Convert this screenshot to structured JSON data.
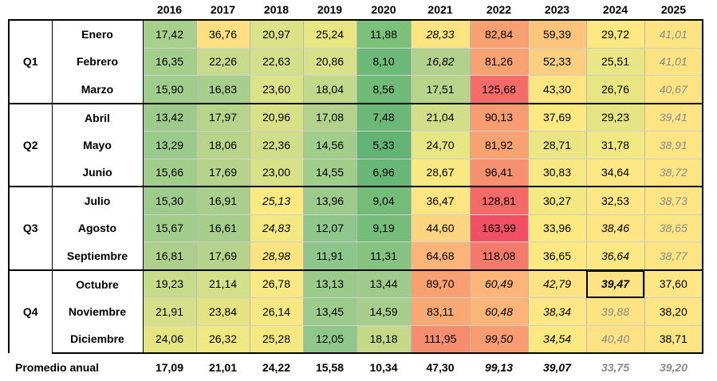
{
  "years": [
    "2016",
    "2017",
    "2018",
    "2019",
    "2020",
    "2021",
    "2022",
    "2023",
    "2024",
    "2025"
  ],
  "quarters": [
    {
      "label": "Q1",
      "months": [
        {
          "name": "Enero",
          "values": [
            "17,42",
            "36,76",
            "20,97",
            "25,24",
            "11,88",
            "28,33",
            "82,84",
            "59,39",
            "29,72",
            "41,01"
          ]
        },
        {
          "name": "Febrero",
          "values": [
            "16,35",
            "22,26",
            "22,63",
            "20,86",
            "8,10",
            "16,82",
            "81,26",
            "52,33",
            "25,51",
            "41,01"
          ]
        },
        {
          "name": "Marzo",
          "values": [
            "15,90",
            "16,83",
            "23,60",
            "18,04",
            "8,56",
            "17,51",
            "125,68",
            "43,30",
            "26,76",
            "40,67"
          ]
        }
      ]
    },
    {
      "label": "Q2",
      "months": [
        {
          "name": "Abril",
          "values": [
            "13,42",
            "17,97",
            "20,96",
            "17,08",
            "7,48",
            "21,04",
            "90,13",
            "37,69",
            "29,23",
            "39,41"
          ]
        },
        {
          "name": "Mayo",
          "values": [
            "13,29",
            "18,06",
            "22,36",
            "14,56",
            "5,33",
            "24,70",
            "81,92",
            "28,71",
            "31,78",
            "38,91"
          ]
        },
        {
          "name": "Junio",
          "values": [
            "15,66",
            "17,69",
            "23,00",
            "14,55",
            "6,96",
            "28,67",
            "96,41",
            "30,83",
            "34,64",
            "38,72"
          ]
        }
      ]
    },
    {
      "label": "Q3",
      "months": [
        {
          "name": "Julio",
          "values": [
            "15,30",
            "16,91",
            "25,13",
            "13,96",
            "9,04",
            "36,47",
            "128,81",
            "30,27",
            "32,53",
            "38,73"
          ]
        },
        {
          "name": "Agosto",
          "values": [
            "15,67",
            "16,61",
            "24,83",
            "12,07",
            "9,19",
            "44,60",
            "163,99",
            "33,96",
            "38,46",
            "38,65"
          ]
        },
        {
          "name": "Septiembre",
          "values": [
            "16,81",
            "17,69",
            "28,98",
            "11,91",
            "11,31",
            "64,68",
            "118,08",
            "36,65",
            "36,64",
            "38,77"
          ]
        }
      ]
    },
    {
      "label": "Q4",
      "months": [
        {
          "name": "Octubre",
          "values": [
            "19,23",
            "21,14",
            "26,78",
            "13,13",
            "13,44",
            "89,70",
            "60,49",
            "42,79",
            "39,47",
            "37,60"
          ]
        },
        {
          "name": "Noviembre",
          "values": [
            "21,91",
            "23,84",
            "26,14",
            "13,45",
            "14,59",
            "83,11",
            "60,48",
            "38,34",
            "39,88",
            "38,20"
          ]
        },
        {
          "name": "Diciembre",
          "values": [
            "24,06",
            "26,32",
            "25,28",
            "12,05",
            "18,18",
            "111,95",
            "99,50",
            "34,54",
            "40,40",
            "38,71"
          ]
        }
      ]
    }
  ],
  "footer": {
    "label": "Promedio anual",
    "values": [
      "17,09",
      "21,01",
      "24,22",
      "15,58",
      "10,34",
      "47,30",
      "99,13",
      "39,07",
      "33,75",
      "39,20"
    ]
  },
  "italic_cells": [
    [
      0,
      5
    ],
    [
      1,
      5
    ],
    [
      6,
      2
    ],
    [
      7,
      2
    ],
    [
      8,
      2
    ],
    [
      9,
      6
    ],
    [
      10,
      6
    ],
    [
      11,
      6
    ],
    [
      9,
      7
    ],
    [
      10,
      7
    ],
    [
      11,
      7
    ],
    [
      7,
      8
    ],
    [
      8,
      8
    ],
    [
      9,
      8
    ],
    [
      0,
      9
    ],
    [
      1,
      9
    ],
    [
      2,
      9
    ],
    [
      3,
      9
    ],
    [
      4,
      9
    ],
    [
      5,
      9
    ],
    [
      6,
      9
    ],
    [
      7,
      9
    ],
    [
      8,
      9
    ],
    [
      10,
      8
    ],
    [
      11,
      8
    ]
  ],
  "gray_cells": [
    [
      0,
      9
    ],
    [
      1,
      9
    ],
    [
      2,
      9
    ],
    [
      3,
      9
    ],
    [
      4,
      9
    ],
    [
      5,
      9
    ],
    [
      6,
      9
    ],
    [
      7,
      9
    ],
    [
      8,
      9
    ],
    [
      10,
      8
    ],
    [
      11,
      8
    ]
  ],
  "bold_cells": [
    [
      9,
      8
    ]
  ],
  "outlined_cells": [
    [
      9,
      8
    ]
  ],
  "footer_italic": [
    6,
    7
  ],
  "footer_gray": [
    8,
    9
  ],
  "cell_colors": [
    [
      "#a8d08d",
      "#fee083",
      "#dbe287",
      "#e8e583",
      "#7cc17a",
      "#fde482",
      "#f8a072",
      "#fec47b",
      "#fde882",
      "#fee383"
    ],
    [
      "#a4ce8c",
      "#c8db8a",
      "#d4df89",
      "#d8e088",
      "#6db977",
      "#b2d18b",
      "#f8a272",
      "#fbcf7e",
      "#eae683",
      "#fee383"
    ],
    [
      "#a1cd8c",
      "#a6ce8c",
      "#dbe287",
      "#c1d98a",
      "#70bb78",
      "#b8d48b",
      "#f46b6a",
      "#fde682",
      "#e8e583",
      "#fee483"
    ],
    [
      "#9ccb8c",
      "#b7d48b",
      "#d8e088",
      "#b3d28b",
      "#6bb877",
      "#d2de89",
      "#f89c71",
      "#fde882",
      "#e6e583",
      "#fee484"
    ],
    [
      "#9bcb8c",
      "#b8d48b",
      "#d0de89",
      "#a2ce8c",
      "#63b374",
      "#e8e583",
      "#f8a272",
      "#ebe683",
      "#f2e983",
      "#fee584"
    ],
    [
      "#a2ce8c",
      "#b6d38b",
      "#d8e088",
      "#a2ce8c",
      "#69b777",
      "#f8e983",
      "#f79070",
      "#f7e883",
      "#fee784",
      "#fee584"
    ],
    [
      "#9fcc8c",
      "#aacf8c",
      "#fbe982",
      "#9ccb8c",
      "#74bd79",
      "#fee583",
      "#f46a69",
      "#f4e883",
      "#fee784",
      "#fee584"
    ],
    [
      "#a2ce8c",
      "#a8ce8c",
      "#f4e883",
      "#8fc68b",
      "#75be79",
      "#fdd47f",
      "#f14f63",
      "#fde982",
      "#fee583",
      "#fee584"
    ],
    [
      "#adcf8c",
      "#b6d38b",
      "#fce581",
      "#8dc68a",
      "#86c381",
      "#fcb478",
      "#f47a6c",
      "#fde882",
      "#fde882",
      "#fee584"
    ],
    [
      "#c8db8a",
      "#d4df89",
      "#f8e983",
      "#9acb8b",
      "#9fcc8c",
      "#f9a072",
      "#fcb478",
      "#fee383",
      "#fee383",
      "#fee685"
    ],
    [
      "#d6e089",
      "#e4e485",
      "#f6e983",
      "#9dcb8c",
      "#a6ce8c",
      "#f9a973",
      "#fcb478",
      "#fee784",
      "#fee383",
      "#fee685"
    ],
    [
      "#e6e584",
      "#f0e883",
      "#f4e883",
      "#90c78b",
      "#c4da8a",
      "#f78d6f",
      "#f99c71",
      "#fde882",
      "#fee283",
      "#fee584"
    ]
  ]
}
